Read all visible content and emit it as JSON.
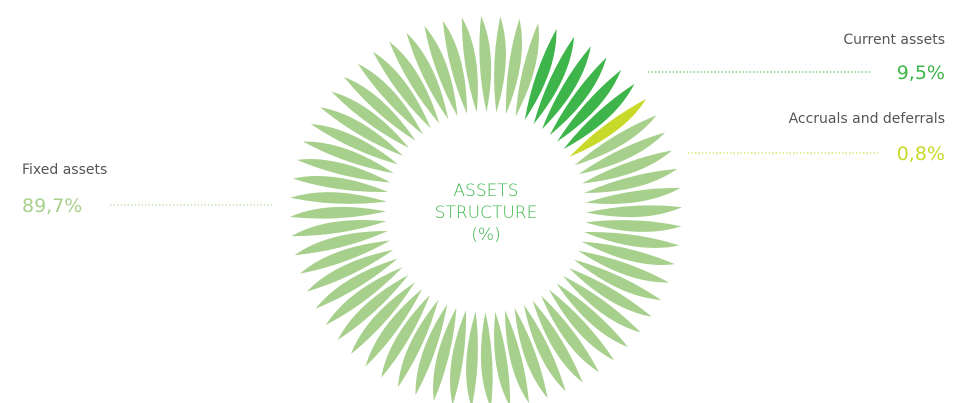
{
  "chart_data": {
    "type": "pie",
    "title": "ASSETS STRUCTURE (%)",
    "categories": [
      "Current assets",
      "Accruals and deferrals",
      "Fixed assets"
    ],
    "values": [
      9.5,
      0.8,
      89.7
    ],
    "value_labels": [
      "9,5%",
      "0,8%",
      "89,7%"
    ],
    "colors": [
      "#3db54a",
      "#c8d92a",
      "#a8d08d"
    ]
  }
}
